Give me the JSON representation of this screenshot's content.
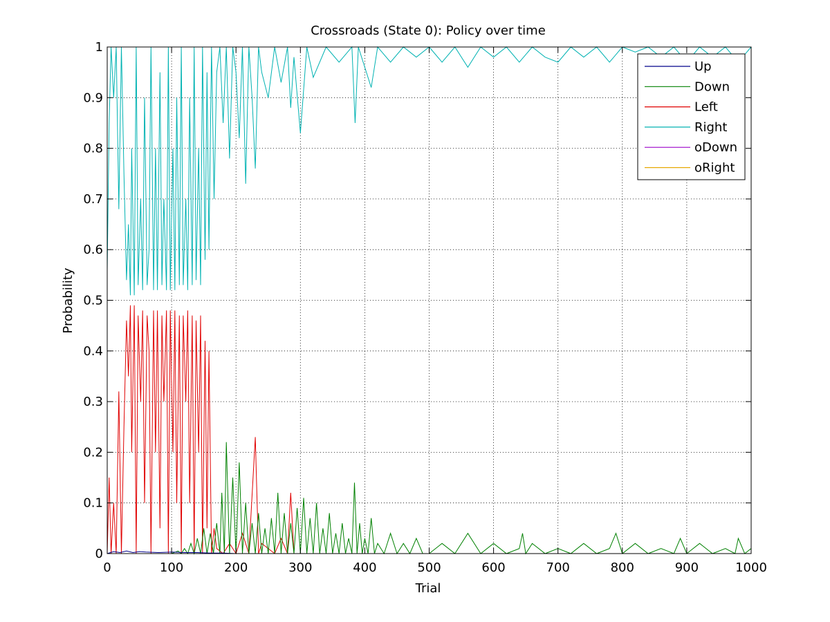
{
  "chart_data": {
    "type": "line",
    "title": "Crossroads (State 0): Policy over time",
    "xlabel": "Trial",
    "ylabel": "Probability",
    "xlim": [
      0,
      1000
    ],
    "ylim": [
      0,
      1
    ],
    "xticks": [
      0,
      100,
      200,
      300,
      400,
      500,
      600,
      700,
      800,
      900,
      1000
    ],
    "yticks": [
      0,
      0.1,
      0.2,
      0.3,
      0.4,
      0.5,
      0.6,
      0.7,
      0.8,
      0.9,
      1
    ],
    "xtick_labels": [
      "0",
      "100",
      "200",
      "300",
      "400",
      "500",
      "600",
      "700",
      "800",
      "900",
      "1000"
    ],
    "ytick_labels": [
      "0",
      "0.1",
      "0.2",
      "0.3",
      "0.4",
      "0.5",
      "0.6",
      "0.7",
      "0.8",
      "0.9",
      "1"
    ],
    "grid": true,
    "legend_position": "top-right",
    "series": [
      {
        "name": "Up",
        "color": "#00008b",
        "x": [
          0,
          10,
          20,
          30,
          40,
          50,
          60,
          80,
          100,
          120,
          140,
          160,
          180,
          200,
          1000
        ],
        "values": [
          0.0,
          0.004,
          0.002,
          0.005,
          0.002,
          0.004,
          0.003,
          0.002,
          0.003,
          0.002,
          0.002,
          0.001,
          0.001,
          0.0,
          0.0
        ]
      },
      {
        "name": "Down",
        "color": "#008000",
        "x": [
          0,
          100,
          110,
          115,
          120,
          125,
          130,
          135,
          140,
          145,
          150,
          155,
          160,
          165,
          170,
          175,
          178,
          182,
          185,
          190,
          195,
          200,
          205,
          210,
          215,
          220,
          225,
          230,
          235,
          240,
          245,
          250,
          255,
          260,
          265,
          270,
          275,
          280,
          285,
          290,
          295,
          300,
          305,
          310,
          315,
          320,
          325,
          330,
          335,
          340,
          345,
          350,
          355,
          360,
          365,
          370,
          375,
          380,
          384,
          388,
          392,
          396,
          400,
          405,
          410,
          415,
          420,
          430,
          440,
          450,
          460,
          470,
          480,
          490,
          500,
          520,
          540,
          560,
          580,
          600,
          620,
          640,
          645,
          650,
          660,
          680,
          700,
          720,
          740,
          760,
          780,
          790,
          800,
          820,
          840,
          860,
          880,
          890,
          900,
          920,
          940,
          960,
          975,
          980,
          990,
          1000
        ],
        "values": [
          0.0,
          0.0,
          0.005,
          0.0,
          0.01,
          0.0,
          0.02,
          0.0,
          0.03,
          0.0,
          0.05,
          0.0,
          0.04,
          0.0,
          0.06,
          0.0,
          0.12,
          0.0,
          0.22,
          0.0,
          0.15,
          0.0,
          0.18,
          0.0,
          0.1,
          0.0,
          0.06,
          0.0,
          0.08,
          0.0,
          0.05,
          0.0,
          0.07,
          0.0,
          0.12,
          0.0,
          0.08,
          0.0,
          0.06,
          0.0,
          0.09,
          0.0,
          0.11,
          0.0,
          0.07,
          0.0,
          0.1,
          0.0,
          0.05,
          0.0,
          0.08,
          0.0,
          0.04,
          0.0,
          0.06,
          0.0,
          0.03,
          0.0,
          0.14,
          0.0,
          0.06,
          0.0,
          0.03,
          0.0,
          0.07,
          0.0,
          0.02,
          0.0,
          0.04,
          0.0,
          0.02,
          0.0,
          0.03,
          0.0,
          0.0,
          0.02,
          0.0,
          0.04,
          0.0,
          0.02,
          0.0,
          0.01,
          0.04,
          0.0,
          0.02,
          0.0,
          0.01,
          0.0,
          0.02,
          0.0,
          0.01,
          0.04,
          0.0,
          0.02,
          0.0,
          0.01,
          0.0,
          0.03,
          0.0,
          0.02,
          0.0,
          0.01,
          0.0,
          0.03,
          0.0,
          0.01
        ]
      },
      {
        "name": "Left",
        "color": "#e00000",
        "x": [
          0,
          3,
          6,
          10,
          14,
          18,
          22,
          26,
          30,
          33,
          36,
          38,
          42,
          45,
          48,
          52,
          55,
          58,
          62,
          65,
          68,
          72,
          75,
          78,
          82,
          85,
          88,
          92,
          95,
          98,
          102,
          105,
          108,
          112,
          115,
          118,
          122,
          125,
          128,
          132,
          135,
          138,
          142,
          145,
          148,
          152,
          155,
          158,
          162,
          166,
          170,
          180,
          190,
          200,
          210,
          220,
          230,
          235,
          240,
          260,
          270,
          280,
          285,
          290,
          300,
          320,
          1000
        ],
        "values": [
          0.0,
          0.15,
          0.0,
          0.1,
          0.0,
          0.32,
          0.0,
          0.25,
          0.46,
          0.35,
          0.49,
          0.2,
          0.49,
          0.0,
          0.47,
          0.3,
          0.48,
          0.1,
          0.47,
          0.4,
          0.0,
          0.48,
          0.2,
          0.48,
          0.05,
          0.47,
          0.3,
          0.48,
          0.0,
          0.48,
          0.2,
          0.48,
          0.1,
          0.47,
          0.0,
          0.47,
          0.3,
          0.48,
          0.1,
          0.47,
          0.0,
          0.46,
          0.2,
          0.47,
          0.0,
          0.42,
          0.05,
          0.4,
          0.0,
          0.05,
          0.01,
          0.0,
          0.02,
          0.0,
          0.04,
          0.0,
          0.23,
          0.0,
          0.02,
          0.0,
          0.03,
          0.0,
          0.12,
          0.0,
          0.0,
          0.0,
          0.0
        ]
      },
      {
        "name": "Right",
        "color": "#00b2b2",
        "x": [
          0,
          3,
          6,
          10,
          14,
          18,
          22,
          26,
          30,
          33,
          36,
          38,
          42,
          45,
          48,
          52,
          55,
          58,
          62,
          65,
          68,
          72,
          75,
          78,
          82,
          85,
          88,
          92,
          95,
          98,
          102,
          105,
          108,
          112,
          115,
          118,
          122,
          125,
          128,
          132,
          135,
          138,
          142,
          145,
          148,
          152,
          155,
          158,
          162,
          166,
          170,
          175,
          180,
          185,
          190,
          195,
          200,
          205,
          210,
          215,
          220,
          225,
          230,
          235,
          240,
          250,
          260,
          270,
          280,
          285,
          290,
          300,
          310,
          320,
          340,
          360,
          380,
          385,
          390,
          400,
          410,
          420,
          440,
          460,
          480,
          500,
          520,
          540,
          560,
          580,
          600,
          620,
          640,
          660,
          680,
          700,
          720,
          740,
          760,
          780,
          800,
          820,
          840,
          860,
          880,
          900,
          920,
          940,
          960,
          980,
          1000
        ],
        "values": [
          0.56,
          0.85,
          1.0,
          0.9,
          1.0,
          0.68,
          1.0,
          0.75,
          0.54,
          0.65,
          0.51,
          0.8,
          0.51,
          1.0,
          0.53,
          0.7,
          0.52,
          0.9,
          0.53,
          0.6,
          1.0,
          0.52,
          0.8,
          0.52,
          0.95,
          0.53,
          0.7,
          0.52,
          1.0,
          0.52,
          0.8,
          0.52,
          0.9,
          0.53,
          1.0,
          0.53,
          0.7,
          0.52,
          0.9,
          0.53,
          1.0,
          0.54,
          0.8,
          0.53,
          1.0,
          0.58,
          0.95,
          0.6,
          1.0,
          0.7,
          0.95,
          1.0,
          0.85,
          1.0,
          0.78,
          1.0,
          0.95,
          0.82,
          1.0,
          0.73,
          1.0,
          0.9,
          0.76,
          1.0,
          0.95,
          0.9,
          1.0,
          0.93,
          1.0,
          0.88,
          0.98,
          0.83,
          1.0,
          0.94,
          1.0,
          0.97,
          1.0,
          0.85,
          1.0,
          0.96,
          0.92,
          1.0,
          0.97,
          1.0,
          0.98,
          1.0,
          0.97,
          1.0,
          0.96,
          1.0,
          0.98,
          1.0,
          0.97,
          1.0,
          0.98,
          0.97,
          1.0,
          0.98,
          1.0,
          0.97,
          1.0,
          0.99,
          1.0,
          0.98,
          1.0,
          0.97,
          1.0,
          0.98,
          1.0,
          0.97,
          1.0
        ]
      },
      {
        "name": "oDown",
        "color": "#9b00c8",
        "x": [
          0,
          1000
        ],
        "values": [
          0.0,
          0.0
        ]
      },
      {
        "name": "oRight",
        "color": "#e6a700",
        "x": [
          0,
          1000
        ],
        "values": [
          0.0,
          0.0
        ]
      }
    ]
  }
}
